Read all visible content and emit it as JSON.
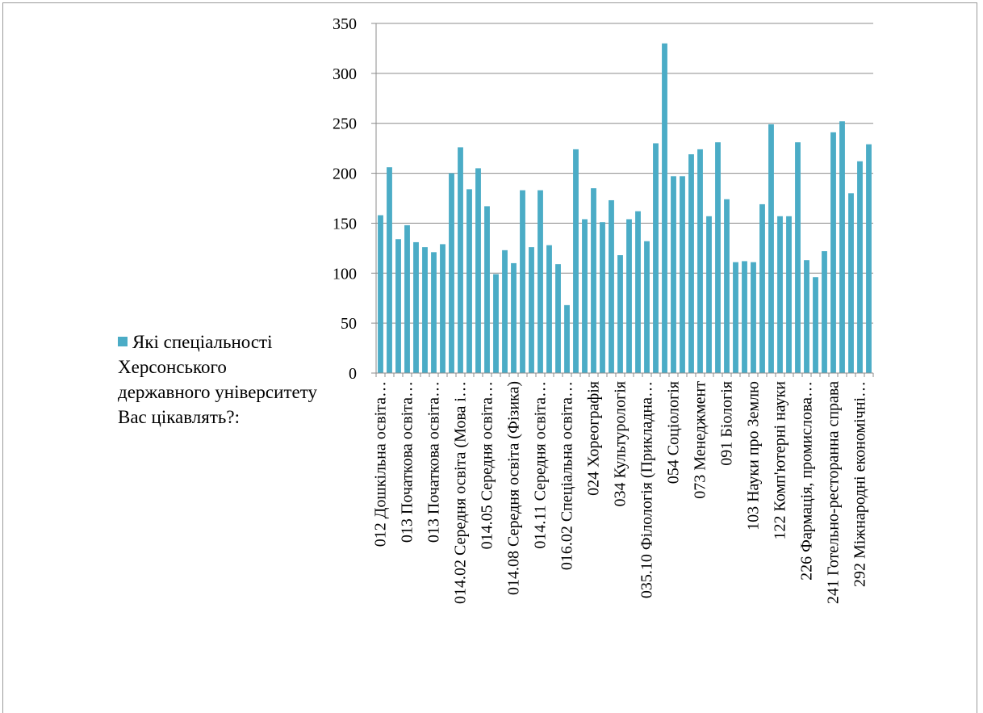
{
  "chart_data": {
    "type": "bar",
    "title": "",
    "xlabel": "",
    "ylabel": "",
    "ylim": [
      0,
      350
    ],
    "yticks": [
      0,
      50,
      100,
      150,
      200,
      250,
      300,
      350
    ],
    "grid": true,
    "legend_position": "left",
    "bar_color": "#4bacc6",
    "series": [
      {
        "name": "Які спеціальності Херсонського державного університету Вас цікавлять?:",
        "values": [
          158,
          206,
          134,
          148,
          131,
          126,
          121,
          129,
          200,
          226,
          184,
          205,
          167,
          99,
          123,
          110,
          183,
          126,
          183,
          128,
          109,
          68,
          224,
          154,
          185,
          151,
          173,
          118,
          154,
          162,
          132,
          230,
          330,
          197,
          197,
          219,
          224,
          157,
          231,
          174,
          111,
          112,
          111,
          169,
          249,
          157,
          157,
          231,
          113,
          96,
          122,
          241,
          252,
          180,
          212,
          229
        ]
      }
    ],
    "category_labels": [
      "012 Дошкільна освіта…",
      "013 Початкова освіта…",
      "013 Початкова освіта…",
      "014.02 Середня освіта (Мова і…",
      "014.05 Середня освіта…",
      "014.08 Середня освіта (Фізика)",
      "014.11 Середня освіта…",
      "016.02 Спеціальна освіта…",
      "024 Хореографія",
      "034 Культурологія",
      "035.10 Філологія (Прикладна…",
      "054 Соціологія",
      "073 Менеджмент",
      "091 Біологія",
      "103 Науки про Землю",
      "122 Комп'ютерні науки",
      "226 Фармація, промислова…",
      "241 Готельно-ресторанна справа",
      "292 Міжнародні економічні…"
    ]
  }
}
